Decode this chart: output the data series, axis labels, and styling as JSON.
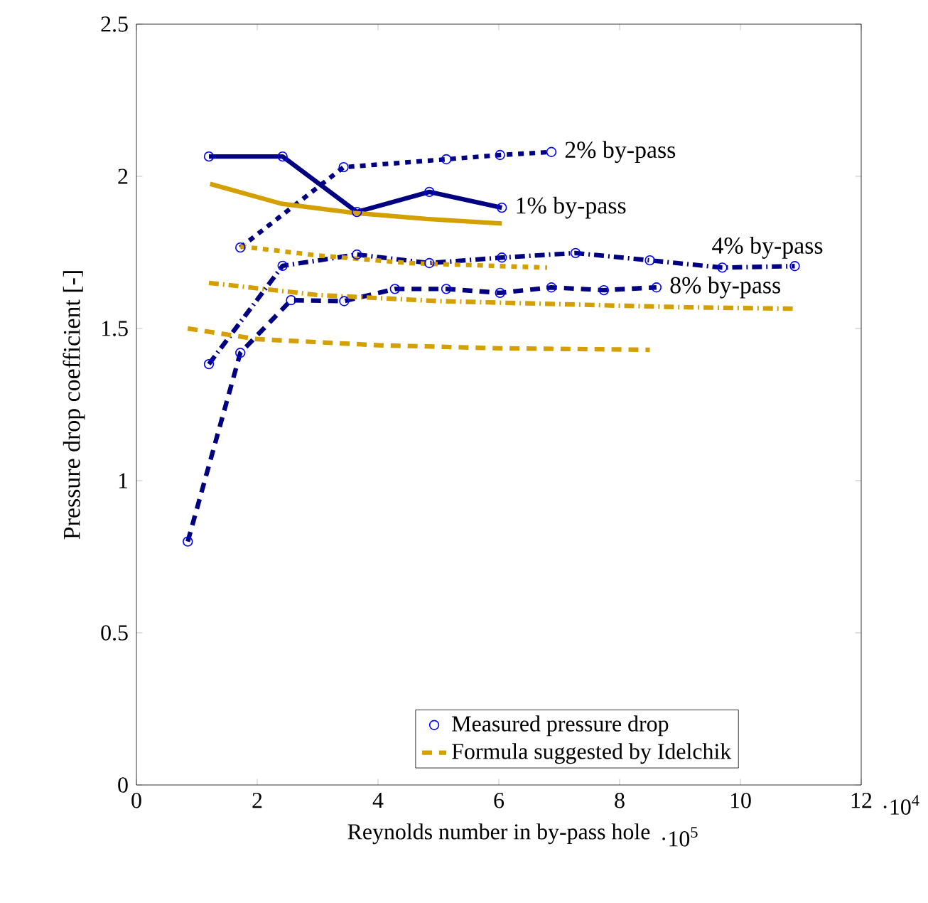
{
  "chart_data": {
    "type": "line",
    "xlabel": "Reynolds number in by-pass hole",
    "ylabel": "Pressure drop coefficient [-]",
    "xlim": [
      0,
      12
    ],
    "xticks": [
      0,
      2,
      4,
      6,
      8,
      10,
      12
    ],
    "ylim": [
      0,
      2.5
    ],
    "yticks": [
      0,
      0.5,
      1,
      1.5,
      2,
      2.5
    ],
    "grid": false,
    "legend": "bottom right",
    "annotations": [
      {
        "text": "1% by-pass",
        "x": 6.05,
        "y": 1.897
      },
      {
        "text": "2% by-pass",
        "x": 6.87,
        "y": 2.08
      },
      {
        "text": "4% by-pass",
        "x": 10.9,
        "y": 1.705
      },
      {
        "text": "8% by-pass",
        "x": 8.61,
        "y": 1.635
      },
      "·10$^{4}$",
      "·10$^{5}$"
    ],
    "series": [
      {
        "name": "Measured pressure drop",
        "color": "#000080",
        "marker": "circle",
        "line_style": "solid",
        "x": [
          1.2,
          2.42,
          3.65,
          4.85,
          6.05
        ],
        "values": [
          2.065,
          2.065,
          1.883,
          1.949,
          1.897
        ]
      },
      {
        "color": "#000080",
        "marker": "circle",
        "line_style": "dotted",
        "x": [
          1.72,
          3.43,
          5.13,
          6.02,
          6.87
        ],
        "values": [
          1.766,
          2.03,
          2.056,
          2.07,
          2.08
        ]
      },
      {
        "color": "#000080",
        "marker": "circle",
        "line_style": "dashdot",
        "x": [
          1.2,
          2.42,
          3.65,
          4.85,
          6.05,
          7.27,
          8.5,
          9.7,
          10.9
        ],
        "values": [
          1.383,
          1.706,
          1.743,
          1.715,
          1.733,
          1.748,
          1.724,
          1.7,
          1.705
        ]
      },
      {
        "color": "#000080",
        "marker": "circle",
        "line_style": "dashed",
        "x": [
          0.85,
          1.72,
          2.56,
          3.44,
          4.28,
          5.13,
          6.02,
          6.87,
          7.74,
          8.61
        ],
        "values": [
          0.8,
          1.42,
          1.593,
          1.59,
          1.63,
          1.63,
          1.617,
          1.635,
          1.626,
          1.635
        ]
      },
      {
        "color": "#d4a000",
        "marker": "none",
        "line_style": "solid",
        "x": [
          1.22,
          2.4,
          3.6,
          4.8,
          6.05
        ],
        "values": [
          1.975,
          1.91,
          1.88,
          1.86,
          1.845
        ]
      },
      {
        "color": "#d4a000",
        "marker": "none",
        "line_style": "dotted",
        "x": [
          1.72,
          3.0,
          4.5,
          6.8
        ],
        "values": [
          1.77,
          1.74,
          1.715,
          1.7
        ]
      },
      {
        "color": "#d4a000",
        "marker": "none",
        "line_style": "dashdot",
        "x": [
          1.2,
          3.0,
          5.0,
          7.0,
          9.0,
          10.9
        ],
        "values": [
          1.65,
          1.61,
          1.59,
          1.58,
          1.57,
          1.565
        ]
      },
      {
        "name": "Formula suggested by Idelchik",
        "color": "#d4a000",
        "marker": "none",
        "line_style": "dashed",
        "x": [
          0.85,
          2.0,
          4.0,
          6.0,
          8.5
        ],
        "values": [
          1.5,
          1.465,
          1.445,
          1.435,
          1.43
        ]
      }
    ]
  }
}
